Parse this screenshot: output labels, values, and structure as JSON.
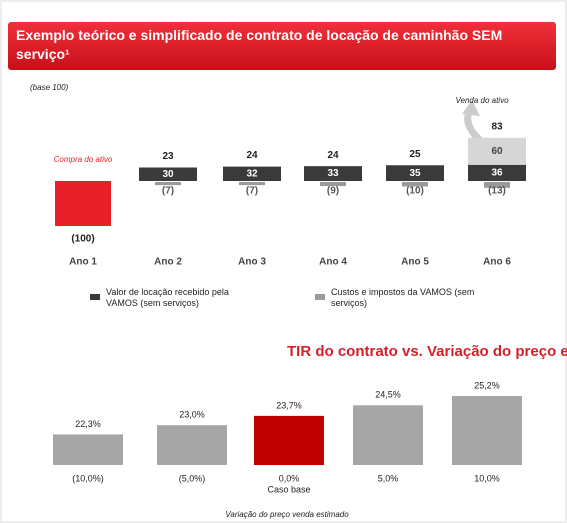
{
  "header": {
    "title": "Exemplo teórico e simplificado de contrato de locação de caminhão SEM serviço¹"
  },
  "chart_data": [
    {
      "type": "waterfall",
      "subtitle": "(base 100)",
      "categories": [
        "Ano 1",
        "Ano 2",
        "Ano 3",
        "Ano 4",
        "Ano 5",
        "Ano 6"
      ],
      "series": [
        {
          "name": "Valor de locação recebido pela VAMOS (sem serviços)",
          "color": "#3a3a3a",
          "values": [
            null,
            30,
            32,
            33,
            35,
            36
          ]
        },
        {
          "name": "Custos e impostos da VAMOS (sem serviços)",
          "color": "#9a9a9a",
          "values": [
            null,
            -7,
            -7,
            -9,
            -10,
            -13
          ],
          "value_labels": [
            null,
            "(7)",
            "(7)",
            "(9)",
            "(10)",
            "(13)"
          ]
        }
      ],
      "events": [
        {
          "name": "Compra do ativo",
          "color": "#e8202a",
          "values": [
            -100,
            null,
            null,
            null,
            null,
            null
          ],
          "value_labels": [
            "(100)",
            null,
            null,
            null,
            null,
            null
          ]
        },
        {
          "name": "Venda do ativo",
          "color": "#d6d6d6",
          "values": [
            null,
            null,
            null,
            null,
            null,
            60
          ]
        }
      ],
      "totals": [
        null,
        23,
        24,
        24,
        25,
        83
      ]
    },
    {
      "type": "bar",
      "title": "TIR do contrato vs. Variação do preço estimado de venda",
      "x_label": "Variação do preço venda estimado",
      "categories": [
        "(10,0%)",
        "(5,0%)",
        "0,0%",
        "5,0%",
        "10,0%"
      ],
      "category_notes": [
        null,
        null,
        "Caso base",
        null,
        null
      ],
      "values": [
        22.3,
        23.0,
        23.7,
        24.5,
        25.2
      ],
      "value_labels": [
        "22,3%",
        "23,0%",
        "23,7%",
        "24,5%",
        "25,2%"
      ],
      "colors": [
        "#a6a6a6",
        "#a6a6a6",
        "#c00000",
        "#a6a6a6",
        "#a6a6a6"
      ],
      "ylim": [
        20,
        25.5
      ]
    }
  ]
}
